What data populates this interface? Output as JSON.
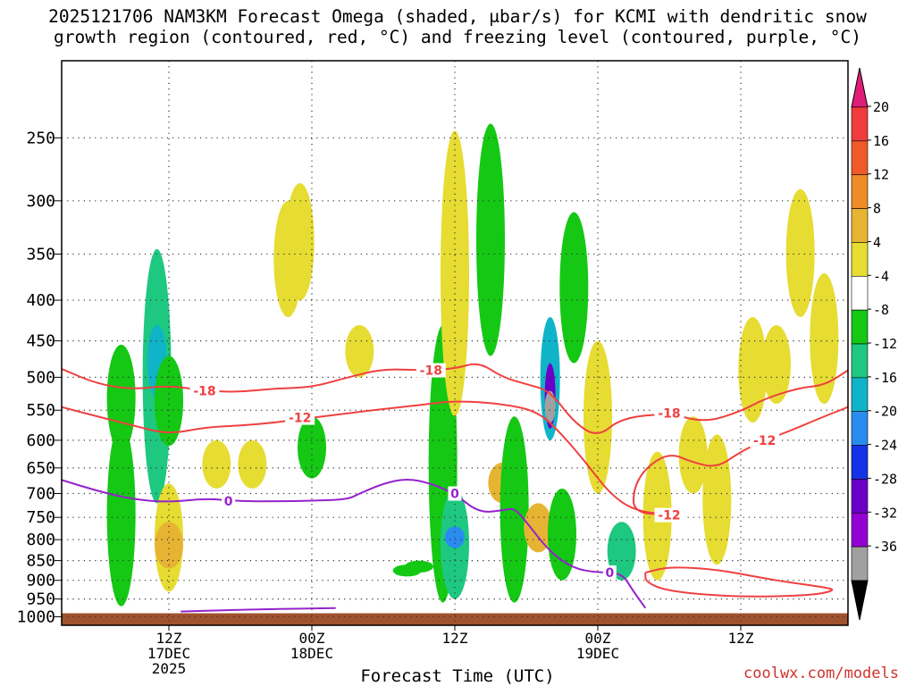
{
  "title": {
    "line1": "2025121706 NAM3KM Forecast Omega (shaded, μbar/s) for KCMI with dendritic snow",
    "line2": "growth region (contoured, red, °C) and freezing level (contoured, purple, °C)"
  },
  "xlabel": "Forecast Time (UTC)",
  "credit": "coolwx.com/models",
  "chart_data": {
    "type": "heatmap",
    "title": "2025121706 NAM3KM Forecast Omega (shaded, μbar/s) for KCMI with dendritic snow growth region (contoured, red, °C) and freezing level (contoured, purple, °C)",
    "xlabel": "Forecast Time (UTC)",
    "ylabel": "",
    "y_axis": {
      "scale": "log",
      "inverted": true,
      "ylim": [
        1025,
        200
      ],
      "ticks": [
        250,
        300,
        350,
        400,
        450,
        500,
        550,
        600,
        650,
        700,
        750,
        800,
        850,
        900,
        950,
        1000
      ],
      "grid": "dotted"
    },
    "x_axis": {
      "xlim": [
        "2025-12-17T03",
        "2025-12-19T21"
      ],
      "ticks": [
        {
          "time": "2025-12-17T12",
          "label": [
            "12Z",
            "17DEC",
            "2025"
          ]
        },
        {
          "time": "2025-12-18T00",
          "label": [
            "00Z",
            "18DEC"
          ]
        },
        {
          "time": "2025-12-18T12",
          "label": [
            "12Z"
          ]
        },
        {
          "time": "2025-12-19T00",
          "label": [
            "00Z",
            "19DEC"
          ]
        },
        {
          "time": "2025-12-19T12",
          "label": [
            "12Z"
          ]
        }
      ],
      "grid": "dotted"
    },
    "colorbar": {
      "labels": [
        "20",
        "16",
        "12",
        "8",
        "4",
        "-4",
        "-8",
        "-12",
        "-16",
        "-20",
        "-24",
        "-28",
        "-32",
        "-36"
      ],
      "levels": [
        -36,
        -32,
        -28,
        -24,
        -20,
        -16,
        -12,
        -8,
        -4,
        4,
        8,
        12,
        16,
        20
      ],
      "colors": [
        "#000000",
        "#a0a0a0",
        "#9400d3",
        "#6a00c8",
        "#1432e6",
        "#2a8cf0",
        "#10b4c8",
        "#1ec880",
        "#14c814",
        "#ffffff",
        "#e6dc32",
        "#e6b432",
        "#ee8c28",
        "#f05a28",
        "#f03c3c",
        "#e01e78"
      ]
    },
    "omega_features": [
      {
        "time": "2025-12-17T08",
        "p_top": 570,
        "p_bottom": 970,
        "value": -6
      },
      {
        "time": "2025-12-17T08",
        "p_top": 455,
        "p_bottom": 620,
        "value": -6
      },
      {
        "time": "2025-12-17T11",
        "p_top": 345,
        "p_bottom": 720,
        "value": -10
      },
      {
        "time": "2025-12-17T11",
        "p_top": 430,
        "p_bottom": 530,
        "value": -13
      },
      {
        "time": "2025-12-17T12",
        "p_top": 470,
        "p_bottom": 610,
        "value": -6
      },
      {
        "time": "2025-12-17T12",
        "p_top": 680,
        "p_bottom": 930,
        "value": 6
      },
      {
        "time": "2025-12-17T12",
        "p_top": 760,
        "p_bottom": 870,
        "value": 9
      },
      {
        "time": "2025-12-17T16",
        "p_top": 600,
        "p_bottom": 690,
        "value": 6
      },
      {
        "time": "2025-12-17T19",
        "p_top": 600,
        "p_bottom": 690,
        "value": 6
      },
      {
        "time": "2025-12-17T22",
        "p_top": 300,
        "p_bottom": 420,
        "value": 6
      },
      {
        "time": "2025-12-17T23",
        "p_top": 285,
        "p_bottom": 400,
        "value": 6
      },
      {
        "time": "2025-12-18T00",
        "p_top": 560,
        "p_bottom": 670,
        "value": -6
      },
      {
        "time": "2025-12-18T04",
        "p_top": 430,
        "p_bottom": 500,
        "value": 6
      },
      {
        "time": "2025-12-18T08",
        "p_top": 860,
        "p_bottom": 890,
        "value": -6
      },
      {
        "time": "2025-12-18T09",
        "p_top": 850,
        "p_bottom": 880,
        "value": -6
      },
      {
        "time": "2025-12-18T11",
        "p_top": 430,
        "p_bottom": 960,
        "value": -7
      },
      {
        "time": "2025-12-18T12",
        "p_top": 245,
        "p_bottom": 560,
        "value": 6
      },
      {
        "time": "2025-12-18T12",
        "p_top": 690,
        "p_bottom": 950,
        "value": -12
      },
      {
        "time": "2025-12-18T12",
        "p_top": 770,
        "p_bottom": 820,
        "value": -18
      },
      {
        "time": "2025-12-18T15",
        "p_top": 240,
        "p_bottom": 470,
        "value": -7
      },
      {
        "time": "2025-12-18T16",
        "p_top": 640,
        "p_bottom": 720,
        "value": 9
      },
      {
        "time": "2025-12-18T17",
        "p_top": 560,
        "p_bottom": 960,
        "value": -6
      },
      {
        "time": "2025-12-18T20",
        "p_top": 420,
        "p_bottom": 600,
        "value": -16
      },
      {
        "time": "2025-12-18T20",
        "p_top": 480,
        "p_bottom": 580,
        "value": -28
      },
      {
        "time": "2025-12-18T20",
        "p_top": 520,
        "p_bottom": 570,
        "value": -36
      },
      {
        "time": "2025-12-18T19",
        "p_top": 720,
        "p_bottom": 830,
        "value": 10
      },
      {
        "time": "2025-12-18T21",
        "p_top": 690,
        "p_bottom": 900,
        "value": -6
      },
      {
        "time": "2025-12-18T22",
        "p_top": 310,
        "p_bottom": 480,
        "value": -6
      },
      {
        "time": "2025-12-19T00",
        "p_top": 450,
        "p_bottom": 700,
        "value": 6
      },
      {
        "time": "2025-12-19T02",
        "p_top": 760,
        "p_bottom": 900,
        "value": -10
      },
      {
        "time": "2025-12-19T05",
        "p_top": 620,
        "p_bottom": 900,
        "value": 6
      },
      {
        "time": "2025-12-19T08",
        "p_top": 560,
        "p_bottom": 700,
        "value": 6
      },
      {
        "time": "2025-12-19T10",
        "p_top": 590,
        "p_bottom": 860,
        "value": 6
      },
      {
        "time": "2025-12-19T13",
        "p_top": 420,
        "p_bottom": 570,
        "value": 6
      },
      {
        "time": "2025-12-19T15",
        "p_top": 430,
        "p_bottom": 540,
        "value": 6
      },
      {
        "time": "2025-12-19T17",
        "p_top": 290,
        "p_bottom": 420,
        "value": 6
      },
      {
        "time": "2025-12-19T19",
        "p_top": 370,
        "p_bottom": 540,
        "value": 6
      }
    ],
    "series": [
      {
        "label": "-18",
        "color": "#f04040",
        "label_at": [
          "2025-12-17T15",
          "2025-12-18T10",
          "2025-12-19T06"
        ],
        "points": [
          [
            "2025-12-17T03",
            488
          ],
          [
            "2025-12-17T06",
            510
          ],
          [
            "2025-12-17T09",
            518
          ],
          [
            "2025-12-17T12",
            512
          ],
          [
            "2025-12-17T15",
            520
          ],
          [
            "2025-12-17T18",
            522
          ],
          [
            "2025-12-17T21",
            516
          ],
          [
            "2025-12-18T00",
            515
          ],
          [
            "2025-12-18T03",
            500
          ],
          [
            "2025-12-18T06",
            488
          ],
          [
            "2025-12-18T09",
            490
          ],
          [
            "2025-12-18T12",
            488
          ],
          [
            "2025-12-18T14",
            478
          ],
          [
            "2025-12-18T16",
            500
          ],
          [
            "2025-12-18T18",
            510
          ],
          [
            "2025-12-18T20",
            520
          ],
          [
            "2025-12-18T22",
            570
          ],
          [
            "2025-12-19T00",
            595
          ],
          [
            "2025-12-19T02",
            562
          ],
          [
            "2025-12-19T06",
            555
          ],
          [
            "2025-12-19T09",
            570
          ],
          [
            "2025-12-19T12",
            552
          ],
          [
            "2025-12-19T14",
            532
          ],
          [
            "2025-12-19T17",
            515
          ],
          [
            "2025-12-19T19",
            512
          ],
          [
            "2025-12-19T21",
            490
          ]
        ]
      },
      {
        "label": "-12",
        "color": "#f04040",
        "label_at": [
          "2025-12-17T23",
          "2025-12-19T06",
          "2025-12-19T14"
        ],
        "points": [
          [
            "2025-12-17T03",
            545
          ],
          [
            "2025-12-17T06",
            560
          ],
          [
            "2025-12-17T09",
            575
          ],
          [
            "2025-12-17T12",
            590
          ],
          [
            "2025-12-17T15",
            578
          ],
          [
            "2025-12-17T18",
            575
          ],
          [
            "2025-12-17T21",
            570
          ],
          [
            "2025-12-18T00",
            562
          ],
          [
            "2025-12-18T03",
            555
          ],
          [
            "2025-12-18T06",
            548
          ],
          [
            "2025-12-18T09",
            542
          ],
          [
            "2025-12-18T12",
            535
          ],
          [
            "2025-12-18T16",
            540
          ],
          [
            "2025-12-18T19",
            552
          ],
          [
            "2025-12-18T21",
            590
          ],
          [
            "2025-12-18T23",
            640
          ],
          [
            "2025-12-19T01",
            700
          ],
          [
            "2025-12-19T03",
            735
          ],
          [
            "2025-12-19T06",
            745
          ],
          [
            "2025-12-19T03",
            740
          ],
          [
            "2025-12-19T03",
            690
          ],
          [
            "2025-12-19T04",
            650
          ],
          [
            "2025-12-19T06",
            622
          ],
          [
            "2025-12-19T08",
            640
          ],
          [
            "2025-12-19T10",
            650
          ],
          [
            "2025-12-19T12",
            620
          ],
          [
            "2025-12-19T14",
            600
          ],
          [
            "2025-12-19T16",
            585
          ],
          [
            "2025-12-19T19",
            560
          ],
          [
            "2025-12-19T21",
            545
          ]
        ]
      },
      {
        "label": "-12",
        "color": "#f04040",
        "points": [
          [
            "2025-12-19T04",
            880
          ],
          [
            "2025-12-19T06",
            865
          ],
          [
            "2025-12-19T10",
            872
          ],
          [
            "2025-12-19T14",
            895
          ],
          [
            "2025-12-19T16",
            905
          ],
          [
            "2025-12-19T19",
            918
          ],
          [
            "2025-12-19T20",
            926
          ],
          [
            "2025-12-19T18",
            940
          ],
          [
            "2025-12-19T12",
            945
          ],
          [
            "2025-12-19T06",
            930
          ],
          [
            "2025-12-19T04",
            905
          ],
          [
            "2025-12-19T04",
            880
          ]
        ]
      },
      {
        "label": "0",
        "color": "#9622cc",
        "label_at": [
          "2025-12-17T17",
          "2025-12-18T12",
          "2025-12-19T01"
        ],
        "points": [
          [
            "2025-12-17T03",
            673
          ],
          [
            "2025-12-17T06",
            695
          ],
          [
            "2025-12-17T09",
            712
          ],
          [
            "2025-12-17T12",
            718
          ],
          [
            "2025-12-17T15",
            710
          ],
          [
            "2025-12-17T18",
            716
          ],
          [
            "2025-12-17T21",
            716
          ],
          [
            "2025-12-18T00",
            715
          ],
          [
            "2025-12-18T03",
            712
          ],
          [
            "2025-12-18T04",
            700
          ],
          [
            "2025-12-18T06",
            680
          ],
          [
            "2025-12-18T08",
            670
          ],
          [
            "2025-12-18T10",
            680
          ],
          [
            "2025-12-18T12",
            700
          ],
          [
            "2025-12-18T14",
            740
          ],
          [
            "2025-12-18T16",
            735
          ],
          [
            "2025-12-18T17",
            730
          ],
          [
            "2025-12-18T18",
            760
          ],
          [
            "2025-12-18T20",
            830
          ],
          [
            "2025-12-18T22",
            870
          ],
          [
            "2025-12-19T00",
            880
          ],
          [
            "2025-12-19T02",
            880
          ],
          [
            "2025-12-19T03",
            930
          ],
          [
            "2025-12-19T04",
            975
          ]
        ]
      },
      {
        "label": "0",
        "color": "#9622cc",
        "points": [
          [
            "2025-12-17T13",
            985
          ],
          [
            "2025-12-17T18",
            980
          ],
          [
            "2025-12-18T02",
            975
          ]
        ]
      }
    ],
    "terrain": {
      "color": "#a0522d",
      "surface_pressure": 990
    },
    "grid": true
  }
}
